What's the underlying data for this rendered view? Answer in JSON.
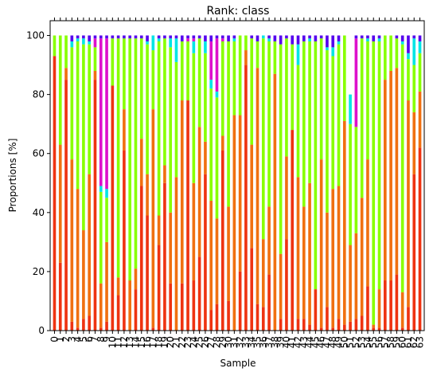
{
  "chart_data": {
    "type": "bar",
    "stacked": true,
    "title": "Rank: class",
    "xlabel": "Sample",
    "ylabel": "Proportions [%]",
    "ylim": [
      0,
      105
    ],
    "yticks": [
      0,
      20,
      40,
      60,
      80,
      100
    ],
    "grid": false,
    "legend": "none",
    "colors": [
      "#ee3311",
      "#f07010",
      "#88ff00",
      "#00e5e5",
      "#dd10cc",
      "#5500ee"
    ],
    "categories": [
      "0",
      "1",
      "2",
      "3",
      "4",
      "5",
      "6",
      "7",
      "8",
      "9",
      "10",
      "11",
      "12",
      "13",
      "14",
      "15",
      "16",
      "17",
      "18",
      "19",
      "20",
      "21",
      "22",
      "23",
      "24",
      "25",
      "26",
      "27",
      "28",
      "29",
      "30",
      "31",
      "32",
      "33",
      "34",
      "35",
      "36",
      "37",
      "38",
      "39",
      "40",
      "41",
      "42",
      "43",
      "44",
      "45",
      "46",
      "47",
      "48",
      "49",
      "50",
      "51",
      "52",
      "53",
      "54",
      "55",
      "56",
      "57",
      "58",
      "59",
      "60",
      "61",
      "62",
      "63"
    ],
    "series": [
      {
        "values": [
          93,
          23,
          85,
          3,
          1,
          4,
          5,
          85,
          1,
          3,
          83,
          12,
          61,
          0,
          14,
          49,
          39,
          1,
          29,
          50,
          16,
          0,
          16,
          78,
          17,
          25,
          53,
          7,
          9,
          61,
          10,
          0,
          20,
          90,
          28,
          9,
          8,
          19,
          0,
          4,
          31,
          68,
          4,
          4,
          2,
          14,
          1,
          8,
          1,
          4,
          2,
          3,
          4,
          5,
          15,
          1,
          1,
          17,
          17,
          19,
          1,
          8,
          53,
          62
        ]
      },
      {
        "values": [
          0,
          40,
          4,
          55,
          47,
          30,
          48,
          3,
          15,
          27,
          0,
          6,
          14,
          17,
          7,
          16,
          14,
          74,
          10,
          6,
          24,
          52,
          62,
          0,
          33,
          44,
          11,
          37,
          29,
          5,
          32,
          73,
          53,
          5,
          35,
          80,
          23,
          23,
          87,
          22,
          28,
          0,
          48,
          38,
          48,
          0,
          57,
          32,
          47,
          45,
          69,
          26,
          29,
          40,
          43,
          1,
          13,
          68,
          71,
          70,
          12,
          70,
          21,
          19
        ]
      },
      {
        "values": [
          7,
          37,
          11,
          38,
          50,
          63,
          44,
          8,
          31,
          15,
          16,
          81,
          24,
          82,
          78,
          34,
          44,
          20,
          59,
          43,
          56,
          39,
          20,
          20,
          44,
          30,
          30,
          38,
          41,
          32,
          56,
          25,
          27,
          5,
          36,
          9,
          68,
          56,
          11,
          71,
          40,
          29,
          38,
          56,
          48,
          84,
          41,
          55,
          45,
          48,
          29,
          41,
          36,
          54,
          40,
          96,
          84,
          15,
          12,
          10,
          84,
          14,
          16,
          13
        ]
      },
      {
        "values": [
          0,
          0,
          0,
          2,
          1,
          2,
          1,
          0,
          2,
          3,
          0,
          0,
          0,
          0,
          0,
          0,
          1,
          5,
          1,
          0,
          3,
          8,
          0,
          0,
          4,
          0,
          4,
          3,
          2,
          0,
          0,
          1,
          0,
          0,
          0,
          0,
          1,
          1,
          0,
          0,
          0,
          0,
          7,
          0,
          1,
          0,
          0,
          1,
          3,
          1,
          0,
          10,
          0,
          0,
          1,
          0,
          1,
          0,
          0,
          0,
          1,
          2,
          9,
          4
        ]
      },
      {
        "values": [
          0,
          0,
          0,
          0,
          0,
          0,
          0,
          3,
          50,
          51,
          0,
          0,
          0,
          0,
          0,
          0,
          0,
          0,
          0,
          0,
          0,
          0,
          0,
          1,
          1,
          0,
          0,
          13,
          18,
          1,
          0,
          0,
          0,
          0,
          0,
          0,
          0,
          0,
          0,
          0,
          0,
          0,
          0,
          0,
          0,
          0,
          0,
          0,
          0,
          0,
          0,
          0,
          30,
          0,
          0,
          0,
          0,
          0,
          0,
          0,
          0,
          0,
          0,
          0
        ]
      },
      {
        "values": [
          0,
          0,
          0,
          2,
          1,
          1,
          2,
          1,
          1,
          1,
          1,
          1,
          1,
          1,
          1,
          1,
          2,
          0,
          1,
          1,
          1,
          1,
          2,
          1,
          1,
          1,
          2,
          2,
          1,
          1,
          2,
          1,
          0,
          0,
          1,
          2,
          0,
          1,
          2,
          3,
          1,
          3,
          3,
          2,
          1,
          2,
          1,
          4,
          4,
          2,
          0,
          0,
          1,
          1,
          1,
          2,
          1,
          0,
          0,
          1,
          2,
          6,
          1,
          2
        ]
      }
    ]
  }
}
